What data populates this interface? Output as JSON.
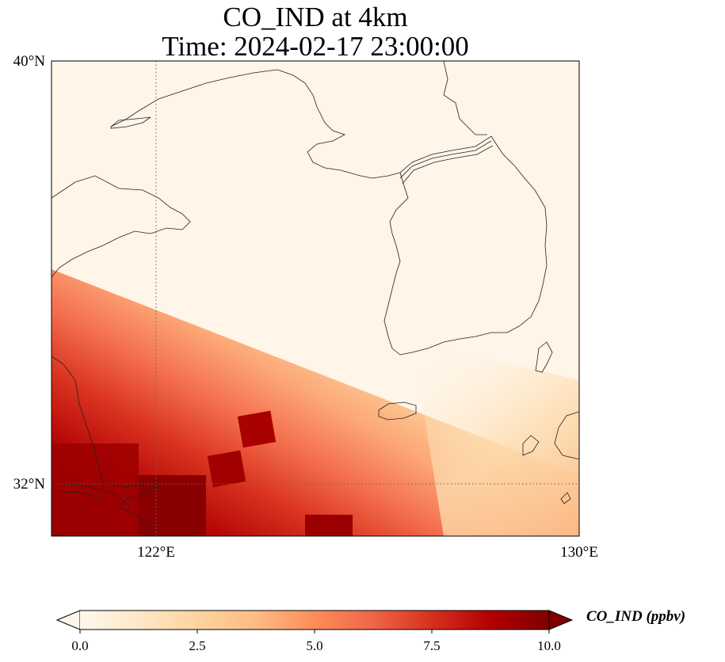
{
  "title": {
    "line1": "CO_IND at 4km",
    "line2": "Time: 2024-02-17 23:00:00"
  },
  "map": {
    "lon_range": [
      120,
      130
    ],
    "lat_range": [
      31,
      40
    ],
    "lon_ticks": [
      "122°E",
      "130°E"
    ],
    "lat_ticks": [
      "40°N",
      "32°N"
    ],
    "gridlines": {
      "lon": [
        122
      ],
      "lat": [
        32
      ],
      "style": "dotted"
    },
    "colormap": "OrRd"
  },
  "colorbar": {
    "label": "CO_IND (ppbv)",
    "ticks": [
      "0.0",
      "2.5",
      "5.0",
      "7.5",
      "10.0"
    ],
    "vmin": 0,
    "vmax": 10,
    "extend": "both",
    "colors": [
      "#fff7ec",
      "#fee8c8",
      "#fdd49e",
      "#fdbb84",
      "#fc8d59",
      "#ef6548",
      "#d7301f",
      "#b30000",
      "#7f0000"
    ]
  }
}
